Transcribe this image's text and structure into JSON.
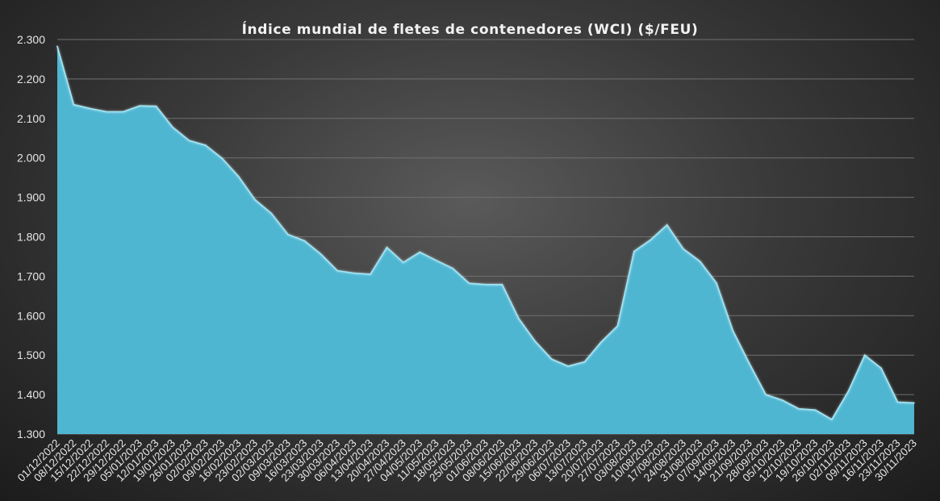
{
  "chart_data": {
    "type": "area",
    "title": "Índice mundial de fletes de contenedores (WCI) ($/FEU)",
    "xlabel": "",
    "ylabel": "",
    "ylim": [
      1300,
      2300
    ],
    "y_ticks": [
      1300,
      1400,
      1500,
      1600,
      1700,
      1800,
      1900,
      2000,
      2100,
      2200,
      2300
    ],
    "y_tick_labels": [
      "1.300",
      "1.400",
      "1.500",
      "1.600",
      "1.700",
      "1.800",
      "1.900",
      "2.000",
      "2.100",
      "2.200",
      "2.300"
    ],
    "grid": true,
    "legend": "none",
    "colors": {
      "fill": "#4fb6d2",
      "line": "#9fe7f7",
      "grid": "#707070",
      "text": "#e6e6e6"
    },
    "categories": [
      "01/12/2022",
      "08/12/2022",
      "15/12/2022",
      "22/12/2022",
      "29/12/2022",
      "05/01/2023",
      "12/01/2023",
      "19/01/2023",
      "26/01/2023",
      "02/02/2023",
      "09/02/2023",
      "16/02/2023",
      "23/02/2023",
      "02/03/2023",
      "09/03/2023",
      "16/03/2023",
      "23/03/2023",
      "30/03/2023",
      "06/04/2023",
      "13/04/2023",
      "20/04/2023",
      "27/04/2023",
      "04/05/2023",
      "11/05/2023",
      "18/05/2023",
      "25/05/2023",
      "01/06/2023",
      "08/06/2023",
      "15/06/2023",
      "22/06/2023",
      "29/06/2023",
      "06/07/2023",
      "13/07/2023",
      "20/07/2023",
      "27/07/2023",
      "03/08/2023",
      "10/08/2023",
      "17/08/2023",
      "24/08/2023",
      "31/08/2023",
      "07/09/2023",
      "14/09/2023",
      "21/09/2023",
      "28/09/2023",
      "05/10/2023",
      "12/10/2023",
      "19/10/2023",
      "26/10/2023",
      "02/11/2023",
      "09/11/2023",
      "16/11/2023",
      "23/11/2023",
      "30/11/2023"
    ],
    "values": [
      2283,
      2135,
      2125,
      2117,
      2117,
      2132,
      2131,
      2078,
      2044,
      2032,
      1999,
      1953,
      1894,
      1859,
      1806,
      1790,
      1756,
      1714,
      1708,
      1705,
      1773,
      1735,
      1761,
      1740,
      1720,
      1682,
      1679,
      1679,
      1593,
      1535,
      1490,
      1472,
      1483,
      1533,
      1574,
      1763,
      1792,
      1830,
      1769,
      1738,
      1683,
      1562,
      1479,
      1400,
      1386,
      1364,
      1361,
      1337,
      1408,
      1500,
      1467,
      1381,
      1379
    ]
  }
}
